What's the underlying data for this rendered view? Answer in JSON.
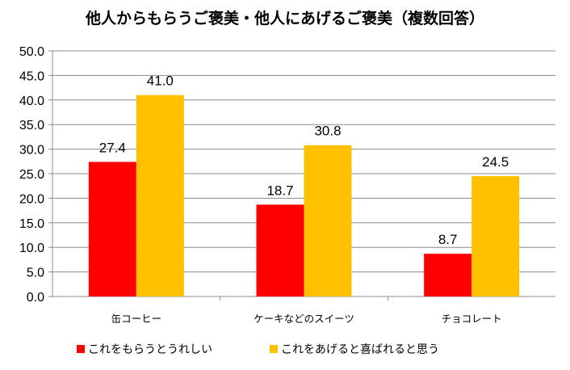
{
  "chart_data": {
    "type": "bar",
    "title": "他人からもらうご褒美・他人にあげるご褒美（複数回答）",
    "categories": [
      "缶コーヒー",
      "ケーキなどのスイーツ",
      "チョコレート"
    ],
    "series": [
      {
        "name": "これをもらうとうれしい",
        "values": [
          27.4,
          18.7,
          8.7
        ],
        "color": "#ff0000"
      },
      {
        "name": "これをあげると喜ばれると思う",
        "values": [
          41.0,
          30.8,
          24.5
        ],
        "color": "#ffc000"
      }
    ],
    "ylim": [
      0,
      50
    ],
    "yticks": [
      "0.0",
      "5.0",
      "10.0",
      "15.0",
      "20.0",
      "25.0",
      "30.0",
      "35.0",
      "40.0",
      "45.0",
      "50.0"
    ],
    "grid": true,
    "legend": "bottom"
  }
}
